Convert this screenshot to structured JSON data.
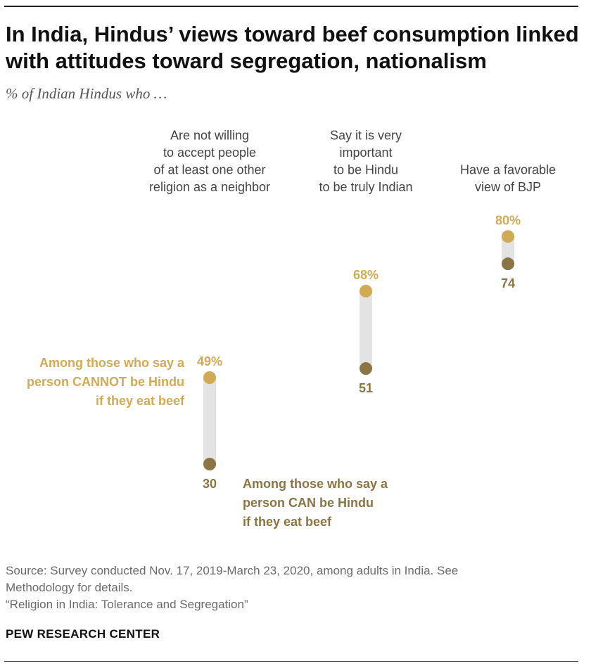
{
  "title": "In India, Hindus’ views toward beef consumption linked with attitudes toward segregation, nationalism",
  "subtitle": "% of Indian Hindus who …",
  "colors": {
    "cannot_group": "#D1AB53",
    "can_group": "#8C7544",
    "connector": "#E3E3E3",
    "label_text": "#444444"
  },
  "chart_data": {
    "type": "dot-range",
    "title": "In India, Hindus’ views toward beef consumption linked with attitudes toward segregation, nationalism",
    "ylim": [
      0,
      100
    ],
    "categories": [
      [
        "Are not willing",
        "to accept people",
        "of at least one other",
        "religion as a neighbor"
      ],
      [
        "Say it is very",
        "important",
        "to be Hindu",
        "to be truly Indian"
      ],
      [
        "Have a favorable",
        "view of BJP"
      ]
    ],
    "series": [
      {
        "name": "Among those who say a person CANNOT be Hindu if they eat beef",
        "label_lines": [
          "Among those who say a",
          "person CANNOT be Hindu",
          "if they eat beef"
        ],
        "values": [
          49,
          68,
          80
        ],
        "value_labels": [
          "49%",
          "68%",
          "80%"
        ]
      },
      {
        "name": "Among those who say a person CAN be Hindu if they eat beef",
        "label_lines": [
          "Among those who say a",
          "person CAN be Hindu",
          "if they eat beef"
        ],
        "values": [
          30,
          51,
          74
        ],
        "value_labels": [
          "30",
          "51",
          "74"
        ]
      }
    ]
  },
  "source": {
    "line1": "Source: Survey conducted Nov. 17, 2019-March 23, 2020, among adults in India. See",
    "line2": "Methodology for details.",
    "line3": "“Religion in India: Tolerance and Segregation”"
  },
  "brand": "PEW RESEARCH CENTER"
}
